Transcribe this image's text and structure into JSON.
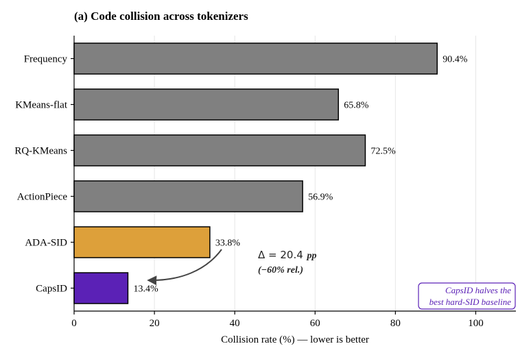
{
  "chart_data": {
    "type": "bar",
    "orientation": "horizontal",
    "title": "(a) Code collision across tokenizers",
    "xlabel": "Collision rate (%) — lower is better",
    "ylabel": "",
    "xlim": [
      0,
      110
    ],
    "xticks": [
      0,
      20,
      40,
      60,
      80,
      100
    ],
    "grid": "vertical",
    "categories": [
      "Frequency",
      "KMeans-flat",
      "RQ-KMeans",
      "ActionPiece",
      "ADA-SID",
      "CapsID"
    ],
    "values": [
      90.4,
      65.8,
      72.5,
      56.9,
      33.8,
      13.4
    ],
    "value_labels": [
      "90.4%",
      "65.8%",
      "72.5%",
      "56.9%",
      "33.8%",
      "13.4%"
    ],
    "bar_colors": [
      "#808080",
      "#808080",
      "#808080",
      "#808080",
      "#DDA03A",
      "#5B21B6"
    ],
    "annotations": {
      "delta_line1": "Δ = 20.4",
      "delta_line1_unit": "pp",
      "delta_line2": "(−60% rel.)",
      "callout_line1": "CapsID halves the",
      "callout_line2": "best hard-SID baseline",
      "callout_color": "#5B21B6"
    }
  }
}
